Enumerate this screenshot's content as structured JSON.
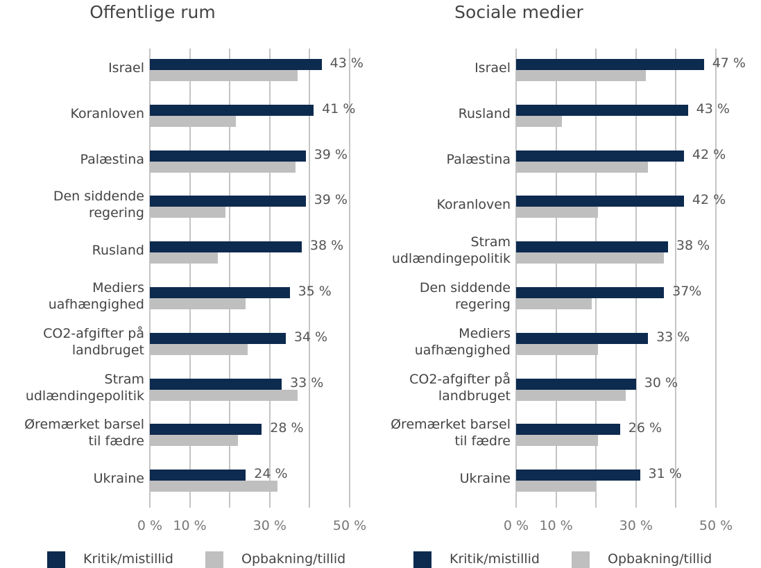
{
  "chart_data": [
    {
      "type": "bar",
      "orientation": "horizontal",
      "title": "Offentlige rum",
      "categories": [
        "Israel",
        "Koranloven",
        "Palæstina",
        "Den siddende\nregering",
        "Rusland",
        "Mediers\nuafhængighed",
        "CO2-afgifter på\nlandbruget",
        "Stram\nudlændingepolitik",
        "Øremærket barsel\ntil fædre",
        "Ukraine"
      ],
      "series": [
        {
          "name": "Kritik/mistillid",
          "color": "#0d2a4f",
          "values": [
            43,
            41,
            39,
            39,
            38,
            35,
            34,
            33,
            28,
            24
          ],
          "value_labels": [
            "43 %",
            "41 %",
            "39 %",
            "39 %",
            "38 %",
            "35 %",
            "34 %",
            "33 %",
            "28 %",
            "24 %"
          ]
        },
        {
          "name": "Opbakning/tillid",
          "color": "#bfbfbf",
          "values": [
            37,
            21.5,
            36.5,
            19,
            17,
            24,
            24.5,
            37,
            22,
            32
          ]
        }
      ],
      "xlim": [
        0,
        50
      ],
      "xticks": [
        {
          "value": 0,
          "label": "0 %"
        },
        {
          "value": 10,
          "label": "10 %"
        },
        {
          "value": 30,
          "label": "30 %"
        },
        {
          "value": 50,
          "label": "50 %"
        }
      ],
      "grid_values": [
        0,
        10,
        20,
        30,
        40,
        50
      ],
      "grid": true
    },
    {
      "type": "bar",
      "orientation": "horizontal",
      "title": "Sociale medier",
      "categories": [
        "Israel",
        "Rusland",
        "Palæstina",
        "Koranloven",
        "Stram\nudlændingepolitik",
        "Den siddende\nregering",
        "Mediers\nuafhængighed",
        "CO2-afgifter på\nlandbruget",
        "Øremærket barsel\ntil fædre",
        "Ukraine"
      ],
      "series": [
        {
          "name": "Kritik/mistillid",
          "color": "#0d2a4f",
          "values": [
            47,
            43,
            42,
            42,
            38,
            37,
            33,
            30,
            26,
            31
          ],
          "value_labels": [
            "47 %",
            "43 %",
            "42 %",
            "42 %",
            "38 %",
            "37%",
            "33 %",
            "30 %",
            "26 %",
            "31 %"
          ]
        },
        {
          "name": "Opbakning/tillid",
          "color": "#bfbfbf",
          "values": [
            32.5,
            11.5,
            33,
            20.5,
            37,
            19,
            20.5,
            27.5,
            20.5,
            20
          ]
        }
      ],
      "xlim": [
        0,
        50
      ],
      "xticks": [
        {
          "value": 0,
          "label": "0 %"
        },
        {
          "value": 10,
          "label": "10 %"
        },
        {
          "value": 30,
          "label": "30 %"
        },
        {
          "value": 50,
          "label": "50 %"
        }
      ],
      "grid_values": [
        0,
        10,
        20,
        30,
        40,
        50
      ],
      "grid": true
    }
  ]
}
